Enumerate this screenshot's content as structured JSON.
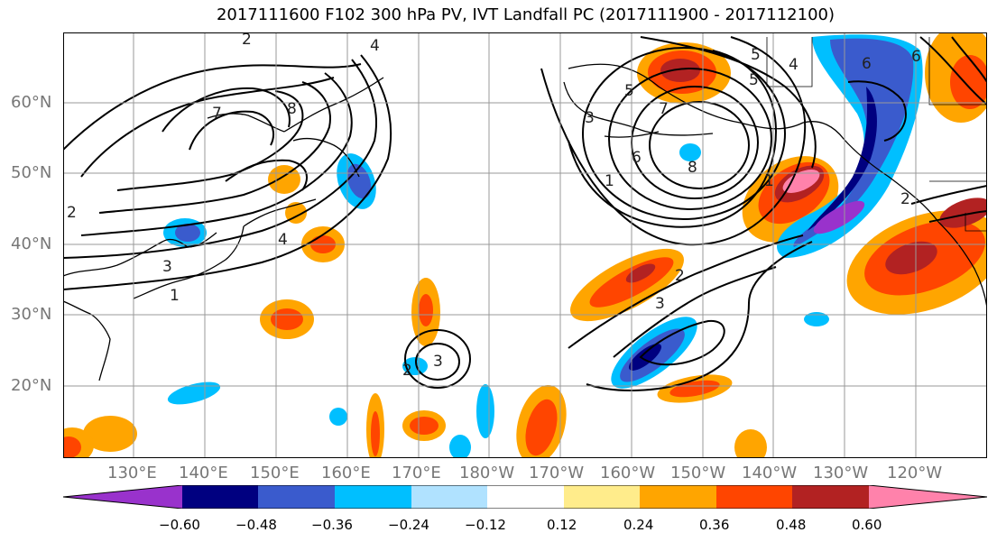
{
  "title": "2017111600 F102 300 hPa PV, IVT Landfall PC (2017111900 - 2017112100)",
  "map": {
    "lat_labels": [
      "60°N",
      "50°N",
      "40°N",
      "30°N",
      "20°N"
    ],
    "lon_labels": [
      "130°E",
      "140°E",
      "150°E",
      "160°E",
      "170°E",
      "180°W",
      "170°W",
      "160°W",
      "150°W",
      "140°W",
      "130°W",
      "120°W"
    ],
    "contour_labels": [
      "2",
      "3",
      "4",
      "5",
      "6",
      "7",
      "8",
      "1",
      "2",
      "3",
      "4",
      "5",
      "6",
      "7",
      "8",
      "1",
      "2",
      "3",
      "4",
      "5",
      "6",
      "2",
      "3",
      "1",
      "2"
    ]
  },
  "colorbar": {
    "tick_labels": [
      "−0.60",
      "−0.48",
      "−0.36",
      "−0.24",
      "−0.12",
      "0.12",
      "0.24",
      "0.36",
      "0.48",
      "0.60"
    ],
    "colors": [
      "#9932CC",
      "#000080",
      "#3A5BCD",
      "#00BFFF",
      "#B0E2FF",
      "#FFFFFF",
      "#FFEC8B",
      "#FFA500",
      "#FF4500",
      "#B22222",
      "#FF82AB"
    ]
  }
}
